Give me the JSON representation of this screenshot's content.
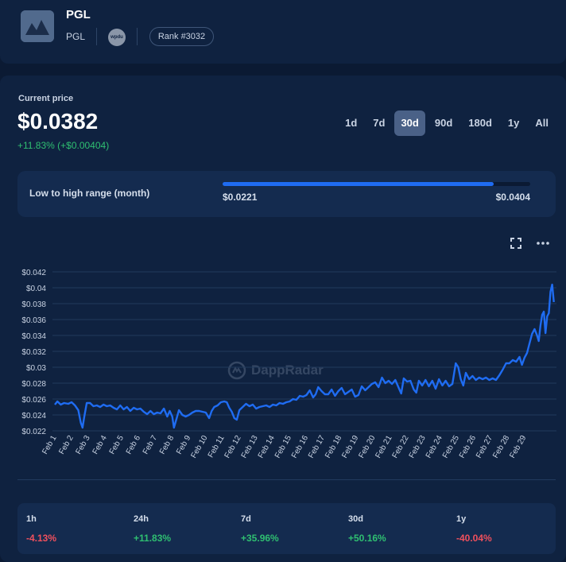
{
  "header": {
    "title": "PGL",
    "subtitle": "PGL",
    "chain_icon_text": "wpdu",
    "rank": "Rank #3032"
  },
  "price_section": {
    "label": "Current price",
    "price": "$0.0382",
    "change": "+11.83%  (+$0.00404)"
  },
  "periods": [
    {
      "label": "1d",
      "active": false
    },
    {
      "label": "7d",
      "active": false
    },
    {
      "label": "30d",
      "active": true
    },
    {
      "label": "90d",
      "active": false
    },
    {
      "label": "180d",
      "active": false
    },
    {
      "label": "1y",
      "active": false
    },
    {
      "label": "All",
      "active": false
    }
  ],
  "range": {
    "label": "Low to high range (month)",
    "low": "$0.0221",
    "high": "$0.0404",
    "fill_fraction": 0.88
  },
  "watermark": "DappRadar",
  "colors": {
    "line": "#1f6cf2",
    "positive": "#2fbf71",
    "negative": "#f0505d",
    "accent": "#1f6cf2"
  },
  "icons": {
    "expand": "expand-icon",
    "more": "more-icon"
  },
  "chart_data": {
    "type": "line",
    "x": [
      "Feb 1",
      "Feb 2",
      "Feb 3",
      "Feb 4",
      "Feb 5",
      "Feb 6",
      "Feb 7",
      "Feb 8",
      "Feb 9",
      "Feb 10",
      "Feb 11",
      "Feb 12",
      "Feb 13",
      "Feb 14",
      "Feb 15",
      "Feb 16",
      "Feb 17",
      "Feb 18",
      "Feb 19",
      "Feb 20",
      "Feb 21",
      "Feb 22",
      "Feb 23",
      "Feb 24",
      "Feb 25",
      "Feb 26",
      "Feb 27",
      "Feb 28",
      "Feb 29"
    ],
    "y_ticks": [
      "$0.022",
      "$0.024",
      "$0.026",
      "$0.028",
      "$0.03",
      "$0.032",
      "$0.034",
      "$0.036",
      "$0.038",
      "$0.04",
      "$0.042"
    ],
    "ylim": [
      0.022,
      0.042
    ],
    "grid": true,
    "series": [
      {
        "points": [
          [
            0.0,
            0.0253
          ],
          [
            0.15,
            0.0257
          ],
          [
            0.35,
            0.0253
          ],
          [
            0.55,
            0.0255
          ],
          [
            0.8,
            0.0254
          ],
          [
            1.0,
            0.0256
          ],
          [
            1.2,
            0.0252
          ],
          [
            1.4,
            0.0246
          ],
          [
            1.55,
            0.023
          ],
          [
            1.65,
            0.0224
          ],
          [
            1.75,
            0.0237
          ],
          [
            1.9,
            0.0255
          ],
          [
            2.1,
            0.0255
          ],
          [
            2.3,
            0.0251
          ],
          [
            2.5,
            0.0252
          ],
          [
            2.7,
            0.025
          ],
          [
            2.9,
            0.0253
          ],
          [
            3.1,
            0.0251
          ],
          [
            3.3,
            0.0252
          ],
          [
            3.5,
            0.0249
          ],
          [
            3.7,
            0.0247
          ],
          [
            3.9,
            0.0252
          ],
          [
            4.1,
            0.0247
          ],
          [
            4.3,
            0.025
          ],
          [
            4.5,
            0.0245
          ],
          [
            4.7,
            0.0249
          ],
          [
            4.9,
            0.0247
          ],
          [
            5.1,
            0.0248
          ],
          [
            5.3,
            0.0244
          ],
          [
            5.5,
            0.0241
          ],
          [
            5.7,
            0.0245
          ],
          [
            5.9,
            0.0241
          ],
          [
            6.1,
            0.0243
          ],
          [
            6.3,
            0.0242
          ],
          [
            6.5,
            0.0248
          ],
          [
            6.7,
            0.0238
          ],
          [
            6.85,
            0.0245
          ],
          [
            7.0,
            0.0238
          ],
          [
            7.1,
            0.0224
          ],
          [
            7.25,
            0.0235
          ],
          [
            7.4,
            0.0246
          ],
          [
            7.6,
            0.024
          ],
          [
            7.8,
            0.0238
          ],
          [
            8.0,
            0.024
          ],
          [
            8.2,
            0.0243
          ],
          [
            8.4,
            0.0245
          ],
          [
            8.6,
            0.0245
          ],
          [
            8.8,
            0.0244
          ],
          [
            9.0,
            0.0243
          ],
          [
            9.2,
            0.0236
          ],
          [
            9.35,
            0.0245
          ],
          [
            9.5,
            0.025
          ],
          [
            9.7,
            0.0252
          ],
          [
            9.9,
            0.0256
          ],
          [
            10.1,
            0.0257
          ],
          [
            10.25,
            0.0256
          ],
          [
            10.4,
            0.0249
          ],
          [
            10.55,
            0.0244
          ],
          [
            10.7,
            0.0236
          ],
          [
            10.85,
            0.0234
          ],
          [
            11.0,
            0.0246
          ],
          [
            11.2,
            0.025
          ],
          [
            11.4,
            0.0254
          ],
          [
            11.6,
            0.0251
          ],
          [
            11.8,
            0.0253
          ],
          [
            12.0,
            0.0248
          ],
          [
            12.2,
            0.025
          ],
          [
            12.4,
            0.0251
          ],
          [
            12.6,
            0.0252
          ],
          [
            12.8,
            0.025
          ],
          [
            13.0,
            0.0253
          ],
          [
            13.2,
            0.0252
          ],
          [
            13.4,
            0.0255
          ],
          [
            13.6,
            0.0254
          ],
          [
            13.8,
            0.0256
          ],
          [
            14.0,
            0.0257
          ],
          [
            14.2,
            0.026
          ],
          [
            14.4,
            0.0259
          ],
          [
            14.6,
            0.0264
          ],
          [
            14.8,
            0.0263
          ],
          [
            15.0,
            0.0265
          ],
          [
            15.2,
            0.0271
          ],
          [
            15.4,
            0.0262
          ],
          [
            15.55,
            0.0266
          ],
          [
            15.7,
            0.0275
          ],
          [
            15.9,
            0.027
          ],
          [
            16.1,
            0.0266
          ],
          [
            16.3,
            0.0266
          ],
          [
            16.5,
            0.0272
          ],
          [
            16.7,
            0.0264
          ],
          [
            16.9,
            0.027
          ],
          [
            17.1,
            0.0274
          ],
          [
            17.3,
            0.0266
          ],
          [
            17.5,
            0.0269
          ],
          [
            17.7,
            0.0272
          ],
          [
            17.9,
            0.0263
          ],
          [
            18.1,
            0.0265
          ],
          [
            18.3,
            0.0276
          ],
          [
            18.5,
            0.0271
          ],
          [
            18.7,
            0.0275
          ],
          [
            18.9,
            0.0279
          ],
          [
            19.1,
            0.0281
          ],
          [
            19.3,
            0.0275
          ],
          [
            19.5,
            0.0287
          ],
          [
            19.7,
            0.028
          ],
          [
            19.9,
            0.0283
          ],
          [
            20.1,
            0.0279
          ],
          [
            20.3,
            0.0284
          ],
          [
            20.5,
            0.0274
          ],
          [
            20.65,
            0.0267
          ],
          [
            20.8,
            0.0286
          ],
          [
            21.0,
            0.0282
          ],
          [
            21.2,
            0.0283
          ],
          [
            21.4,
            0.0272
          ],
          [
            21.55,
            0.0268
          ],
          [
            21.7,
            0.0283
          ],
          [
            21.9,
            0.0277
          ],
          [
            22.1,
            0.0284
          ],
          [
            22.3,
            0.0276
          ],
          [
            22.5,
            0.0283
          ],
          [
            22.7,
            0.0273
          ],
          [
            22.9,
            0.0285
          ],
          [
            23.1,
            0.0277
          ],
          [
            23.3,
            0.0283
          ],
          [
            23.5,
            0.0276
          ],
          [
            23.7,
            0.0279
          ],
          [
            23.9,
            0.0305
          ],
          [
            24.05,
            0.03
          ],
          [
            24.2,
            0.0285
          ],
          [
            24.35,
            0.0277
          ],
          [
            24.5,
            0.0293
          ],
          [
            24.7,
            0.0285
          ],
          [
            24.9,
            0.0289
          ],
          [
            25.1,
            0.0284
          ],
          [
            25.3,
            0.0287
          ],
          [
            25.5,
            0.0285
          ],
          [
            25.7,
            0.0287
          ],
          [
            25.9,
            0.0284
          ],
          [
            26.1,
            0.0286
          ],
          [
            26.3,
            0.0284
          ],
          [
            26.5,
            0.029
          ],
          [
            26.7,
            0.0297
          ],
          [
            26.9,
            0.0305
          ],
          [
            27.1,
            0.0305
          ],
          [
            27.3,
            0.0309
          ],
          [
            27.5,
            0.0307
          ],
          [
            27.7,
            0.0313
          ],
          [
            27.85,
            0.0303
          ],
          [
            28.0,
            0.0312
          ],
          [
            28.15,
            0.0318
          ],
          [
            28.3,
            0.033
          ],
          [
            28.45,
            0.0342
          ],
          [
            28.6,
            0.0348
          ],
          [
            28.75,
            0.034
          ],
          [
            28.85,
            0.0333
          ],
          [
            28.95,
            0.0352
          ],
          [
            29.05,
            0.0366
          ],
          [
            29.15,
            0.037
          ],
          [
            29.25,
            0.0343
          ],
          [
            29.35,
            0.0364
          ],
          [
            29.45,
            0.0368
          ],
          [
            29.55,
            0.0395
          ],
          [
            29.65,
            0.0404
          ],
          [
            29.75,
            0.0382
          ]
        ]
      }
    ]
  },
  "stats": [
    {
      "label": "1h",
      "value": "-4.13%",
      "trend": "neg"
    },
    {
      "label": "24h",
      "value": "+11.83%",
      "trend": "pos"
    },
    {
      "label": "7d",
      "value": "+35.96%",
      "trend": "pos"
    },
    {
      "label": "30d",
      "value": "+50.16%",
      "trend": "pos"
    },
    {
      "label": "1y",
      "value": "-40.04%",
      "trend": "neg"
    }
  ]
}
